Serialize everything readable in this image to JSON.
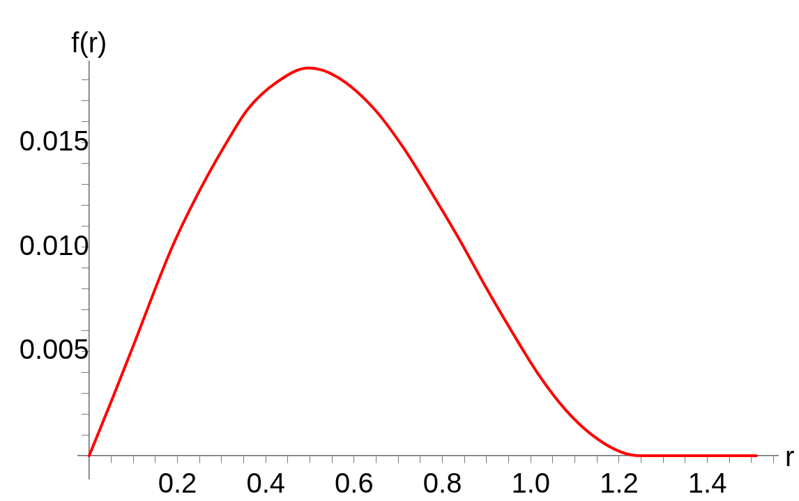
{
  "chart_data": {
    "type": "line",
    "xlabel": "r",
    "ylabel": "f(r)",
    "xlim": [
      -0.025,
      1.56
    ],
    "ylim": [
      -0.0011,
      0.0189
    ],
    "xticks": [
      {
        "value": 0.05,
        "label": null
      },
      {
        "value": 0.1,
        "label": null
      },
      {
        "value": 0.15,
        "label": null
      },
      0.2,
      {
        "value": 0.25,
        "label": null
      },
      {
        "value": 0.3,
        "label": null
      },
      {
        "value": 0.35,
        "label": null
      },
      0.4,
      {
        "value": 0.45,
        "label": null
      },
      {
        "value": 0.5,
        "label": null
      },
      {
        "value": 0.55,
        "label": null
      },
      0.6,
      {
        "value": 0.65,
        "label": null
      },
      {
        "value": 0.7,
        "label": null
      },
      {
        "value": 0.75,
        "label": null
      },
      0.8,
      {
        "value": 0.85,
        "label": null
      },
      {
        "value": 0.9,
        "label": null
      },
      {
        "value": 0.95,
        "label": null
      },
      {
        "value": 1,
        "label": "1.0"
      },
      {
        "value": 1.05,
        "label": null
      },
      {
        "value": 1.1,
        "label": null
      },
      {
        "value": 1.15,
        "label": null
      },
      1.2,
      {
        "value": 1.25,
        "label": null
      },
      {
        "value": 1.3,
        "label": null
      },
      {
        "value": 1.35,
        "label": null
      },
      1.4,
      {
        "value": 1.45,
        "label": null
      },
      {
        "value": 1.5,
        "label": null
      },
      {
        "value": 1.55,
        "label": null
      }
    ],
    "yticks": [
      {
        "value": 0.001,
        "label": null
      },
      {
        "value": 0.002,
        "label": null
      },
      {
        "value": 0.003,
        "label": null
      },
      {
        "value": 0.004,
        "label": null
      },
      0.005,
      {
        "value": 0.006,
        "label": null
      },
      {
        "value": 0.007,
        "label": null
      },
      {
        "value": 0.008,
        "label": null
      },
      {
        "value": 0.009,
        "label": null
      },
      {
        "value": 0.01,
        "label": "0.010"
      },
      {
        "value": 0.011,
        "label": null
      },
      {
        "value": 0.012,
        "label": null
      },
      {
        "value": 0.013,
        "label": null
      },
      {
        "value": 0.014,
        "label": null
      },
      0.015,
      {
        "value": 0.016,
        "label": null
      },
      {
        "value": 0.017,
        "label": null
      },
      {
        "value": 0.018,
        "label": null
      }
    ],
    "grid": false,
    "legend": false,
    "marker": "none",
    "line_style": "solid",
    "series": [
      {
        "color": "#ff0000",
        "x": [
          0,
          0.05,
          0.095,
          0.188,
          0.25,
          0.311,
          0.359,
          0.425,
          0.496,
          0.561,
          0.645,
          0.711,
          0.777,
          0.838,
          0.898,
          0.958,
          1.018,
          1.078,
          1.138,
          1.204,
          1.25,
          1.511
        ],
        "values": [
          0,
          0.0026,
          0.005,
          0.01,
          0.0127,
          0.015,
          0.0166,
          0.0179,
          0.01858,
          0.01816,
          0.01663,
          0.01478,
          0.01255,
          0.01038,
          0.00809,
          0.00592,
          0.00388,
          0.00222,
          0.00101,
          0.00018,
          0,
          0
        ]
      }
    ]
  }
}
